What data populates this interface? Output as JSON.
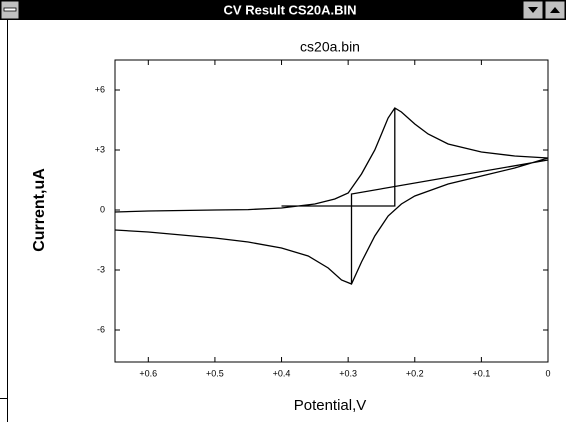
{
  "window": {
    "title": "CV Result CS20A.BIN"
  },
  "chart_data": {
    "type": "line",
    "title": "cs20a.bin",
    "x_label": "Potential,V",
    "y_label": "Current,uA",
    "xlim": [
      0.65,
      0
    ],
    "ylim": [
      -7.6,
      7.5
    ],
    "xticks": [
      {
        "value": 0.6,
        "label": "+0.6"
      },
      {
        "value": 0.5,
        "label": "+0.5"
      },
      {
        "value": 0.4,
        "label": "+0.4"
      },
      {
        "value": 0.3,
        "label": "+0.3"
      },
      {
        "value": 0.2,
        "label": "+0.2"
      },
      {
        "value": 0.1,
        "label": "+0.1"
      },
      0
    ],
    "yticks": [
      {
        "value": 6,
        "label": "+6"
      },
      {
        "value": 3,
        "label": "+3"
      },
      0,
      -3,
      -6
    ],
    "series": [
      {
        "color": "#000000",
        "x": [
          0.65,
          0.6,
          0.5,
          0.45,
          0.4,
          0.35,
          0.32,
          0.3,
          0.28,
          0.26,
          0.25,
          0.24,
          0.23,
          0.22,
          0.2,
          0.18,
          0.15,
          0.1,
          0.05,
          0.0,
          null,
          0.0,
          0.05,
          0.1,
          0.15,
          0.2,
          0.22,
          0.24,
          0.26,
          0.28,
          0.295,
          0.31,
          0.33,
          0.36,
          0.4,
          0.45,
          0.5,
          0.55,
          0.6,
          0.65,
          null,
          0.4,
          0.23,
          0.23,
          null,
          0.295,
          0.295,
          0.0
        ],
        "values": [
          -0.1,
          -0.05,
          0.0,
          0.02,
          0.1,
          0.3,
          0.55,
          0.85,
          1.8,
          3.0,
          3.8,
          4.6,
          5.1,
          4.9,
          4.3,
          3.8,
          3.3,
          2.9,
          2.7,
          2.6,
          null,
          2.6,
          2.1,
          1.7,
          1.3,
          0.7,
          0.3,
          -0.3,
          -1.3,
          -2.6,
          -3.7,
          -3.5,
          -2.9,
          -2.3,
          -1.9,
          -1.6,
          -1.4,
          -1.25,
          -1.1,
          -1.0,
          null,
          0.2,
          0.2,
          5.1,
          null,
          -3.7,
          0.8,
          2.5
        ]
      }
    ]
  }
}
